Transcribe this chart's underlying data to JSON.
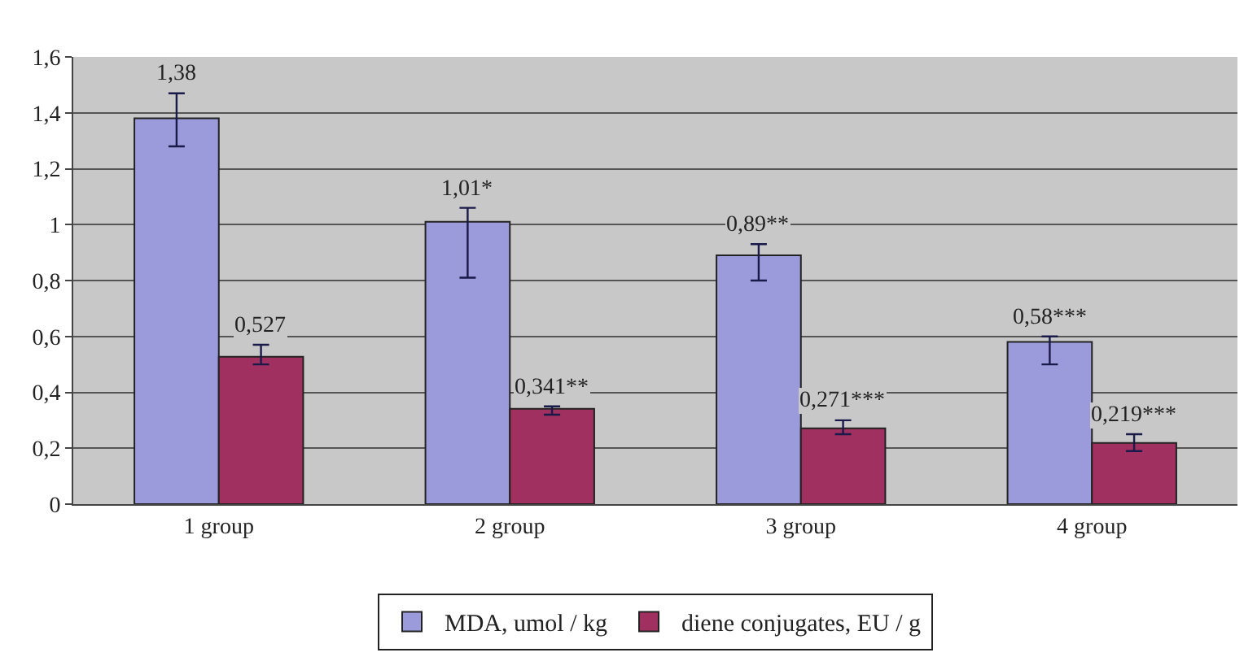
{
  "chart_data": {
    "type": "bar",
    "categories": [
      "1 group",
      "2 group",
      "3 group",
      "4 group"
    ],
    "series": [
      {
        "name": "MDA, umol / kg",
        "color": "#9b9bdb",
        "values": [
          1.38,
          1.01,
          0.89,
          0.58
        ],
        "errors": [
          [
            1.28,
            1.47
          ],
          [
            0.81,
            1.06
          ],
          [
            0.8,
            0.93
          ],
          [
            0.5,
            0.6
          ]
        ],
        "value_labels": [
          "1,38",
          "1,01*",
          "0,89**",
          "0,58***"
        ]
      },
      {
        "name": "diene conjugates, EU / g",
        "color": "#a0305f",
        "values": [
          0.527,
          0.341,
          0.271,
          0.219
        ],
        "errors": [
          [
            0.5,
            0.57
          ],
          [
            0.32,
            0.35
          ],
          [
            0.25,
            0.3
          ],
          [
            0.19,
            0.25
          ]
        ],
        "value_labels": [
          "0,527",
          "0,341**",
          "0,271***",
          "0,219***"
        ]
      }
    ],
    "ylim": [
      0,
      1.6
    ],
    "yticks": [
      0,
      {
        "value": 0.2,
        "label": "0,2"
      },
      {
        "value": 0.4,
        "label": "0,4"
      },
      {
        "value": 0.6,
        "label": "0,6"
      },
      {
        "value": 0.8,
        "label": "0,8"
      },
      1,
      {
        "value": 1.2,
        "label": "1,2"
      },
      {
        "value": 1.4,
        "label": "1,4"
      },
      {
        "value": 1.6,
        "label": "1,6"
      }
    ],
    "grid": "y",
    "legend": "bottom"
  }
}
